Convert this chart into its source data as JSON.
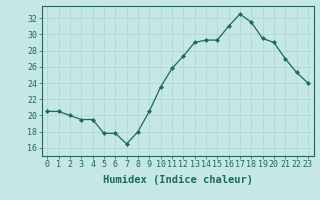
{
  "x": [
    0,
    1,
    2,
    3,
    4,
    5,
    6,
    7,
    8,
    9,
    10,
    11,
    12,
    13,
    14,
    15,
    16,
    17,
    18,
    19,
    20,
    21,
    22,
    23
  ],
  "y": [
    20.5,
    20.5,
    20.0,
    19.5,
    19.5,
    17.8,
    17.8,
    16.5,
    18.0,
    20.5,
    23.5,
    25.8,
    27.3,
    29.0,
    29.3,
    29.3,
    31.0,
    32.5,
    31.5,
    29.5,
    29.0,
    27.0,
    25.3,
    24.0
  ],
  "xlabel": "Humidex (Indice chaleur)",
  "ylim": [
    15,
    33.5
  ],
  "xlim": [
    -0.5,
    23.5
  ],
  "yticks": [
    16,
    18,
    20,
    22,
    24,
    26,
    28,
    30,
    32
  ],
  "xticks": [
    0,
    1,
    2,
    3,
    4,
    5,
    6,
    7,
    8,
    9,
    10,
    11,
    12,
    13,
    14,
    15,
    16,
    17,
    18,
    19,
    20,
    21,
    22,
    23
  ],
  "line_color": "#1a6b5a",
  "marker": "D",
  "marker_size": 2.0,
  "bg_color": "#c5e8e5",
  "grid_color": "#afd4d0",
  "xlabel_fontsize": 7.5,
  "tick_fontsize": 6.0
}
